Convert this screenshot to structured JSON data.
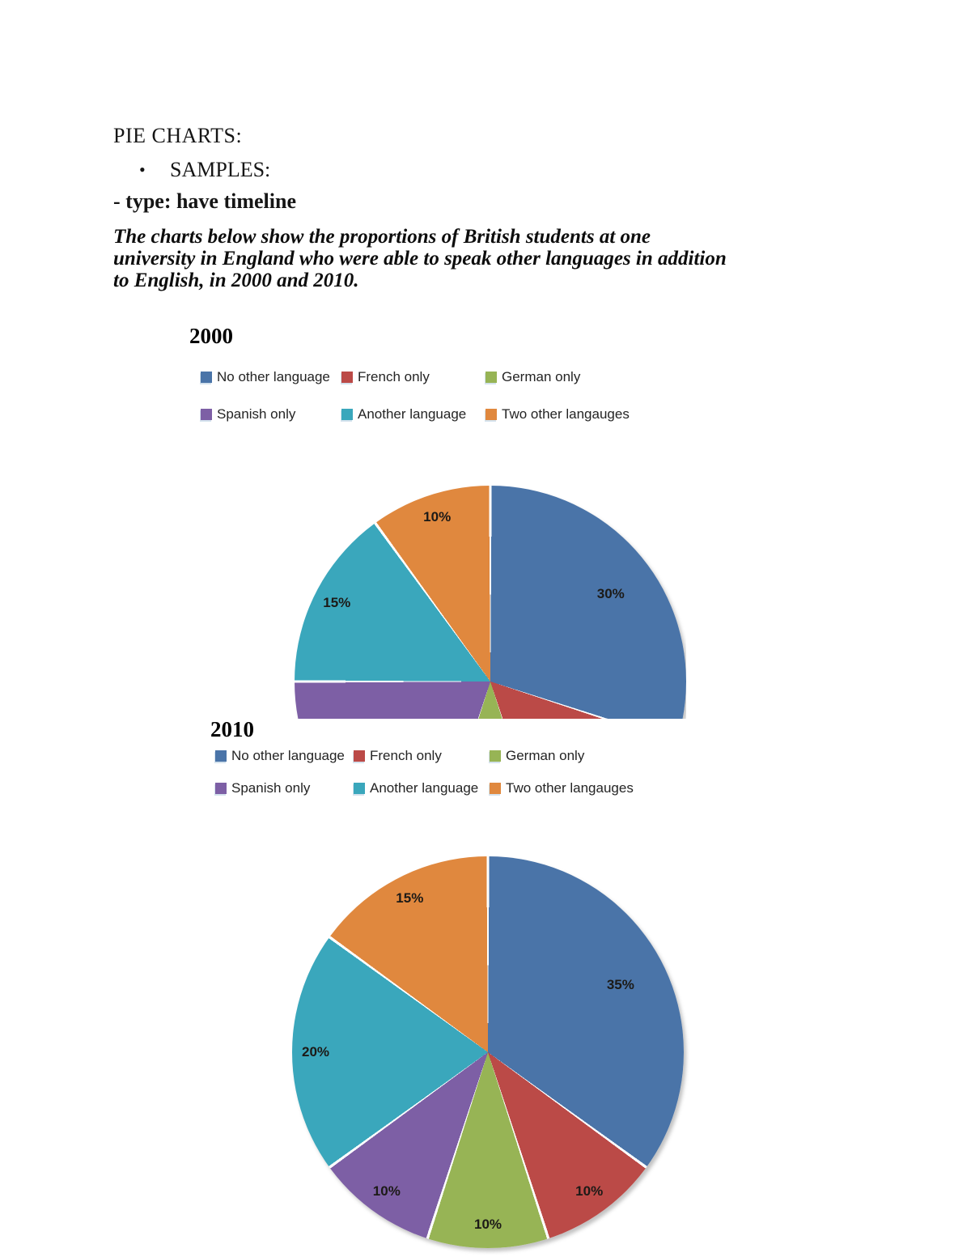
{
  "doc": {
    "title": "PIE CHARTS:",
    "bullet": "•",
    "samples_label": "SAMPLES:",
    "type_line": "- type: have timeline",
    "intro_lines": [
      "The charts below show the proportions of British students at one",
      "university in England who were able to speak other languages in addition",
      "to English, in 2000 and 2010."
    ]
  },
  "chart_data": [
    {
      "type": "pie",
      "title": "2000",
      "unit": "%",
      "legend_position": "top",
      "start_angle_deg": 0,
      "direction": "clockwise",
      "categories": [
        "No other language",
        "French only",
        "German only",
        "Spanish only",
        "Another language",
        "Two other langauges"
      ],
      "values": [
        30,
        15,
        10,
        20,
        15,
        10
      ],
      "colors": [
        "#4A74A8",
        "#BB4A47",
        "#97B455",
        "#7D5FA5",
        "#3AA7BC",
        "#E0883E"
      ],
      "visible_data_labels": [
        "30%",
        "15%",
        "10%"
      ],
      "note_visual": "pie clipped at bottom edge of chart area"
    },
    {
      "type": "pie",
      "title": "2010",
      "unit": "%",
      "legend_position": "top",
      "start_angle_deg": 0,
      "direction": "clockwise",
      "categories": [
        "No other language",
        "French only",
        "German only",
        "Spanish only",
        "Another language",
        "Two other langauges"
      ],
      "values": [
        35,
        10,
        10,
        10,
        20,
        15
      ],
      "colors": [
        "#4A74A8",
        "#BB4A47",
        "#97B455",
        "#7D5FA5",
        "#3AA7BC",
        "#E0883E"
      ],
      "visible_data_labels": [
        "35%",
        "10%",
        "10%",
        "10%",
        "20%",
        "15%"
      ]
    }
  ]
}
